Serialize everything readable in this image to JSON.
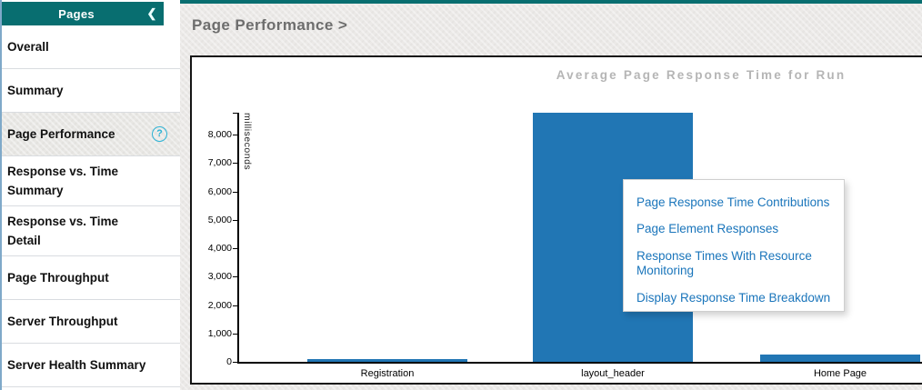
{
  "colors": {
    "teal_header": "#086e70",
    "bar_blue": "#2176b4",
    "link_blue": "#1a75bb",
    "chart_title_gray": "#b5b5b5",
    "heading_gray": "#6d6d6d",
    "help_icon_cyan": "#2bb3d6"
  },
  "sidebar": {
    "title": "Pages",
    "collapse_icon": "❮",
    "help_icon": "?",
    "items": [
      {
        "label": "Overall",
        "selected": false
      },
      {
        "label": "Summary",
        "selected": false
      },
      {
        "label": "Page Performance",
        "selected": true
      },
      {
        "label": "Response vs. Time Summary",
        "selected": false
      },
      {
        "label": "Response vs. Time Detail",
        "selected": false
      },
      {
        "label": "Page Throughput",
        "selected": false
      },
      {
        "label": "Server Throughput",
        "selected": false
      },
      {
        "label": "Server Health Summary",
        "selected": false
      }
    ]
  },
  "main": {
    "heading": "Page Performance >"
  },
  "popup": {
    "items": [
      {
        "label": "Page Response Time Contributions"
      },
      {
        "label": "Page Element Responses"
      },
      {
        "label": "Response Times With Resource Monitoring"
      },
      {
        "label": "Display Response Time Breakdown"
      }
    ]
  },
  "chart_data": {
    "type": "bar",
    "title": "Average Page Response Time for Run",
    "xlabel": "",
    "ylabel": "milliseconds",
    "categories": [
      "Registration",
      "layout_header",
      "Home Page"
    ],
    "values": [
      100,
      8770,
      270
    ],
    "ylim": [
      0,
      8770
    ],
    "grid": false,
    "legend": "none",
    "bar_color": "#2176b4",
    "yticks": [
      {
        "value": 0,
        "label": "0"
      },
      {
        "value": 1000,
        "label": "1,000"
      },
      {
        "value": 2000,
        "label": "2,000"
      },
      {
        "value": 3000,
        "label": "3,000"
      },
      {
        "value": 4000,
        "label": "4,000"
      },
      {
        "value": 5000,
        "label": "5,000"
      },
      {
        "value": 6000,
        "label": "6,000"
      },
      {
        "value": 7000,
        "label": "7,000"
      },
      {
        "value": 8000,
        "label": "8,000"
      }
    ]
  }
}
